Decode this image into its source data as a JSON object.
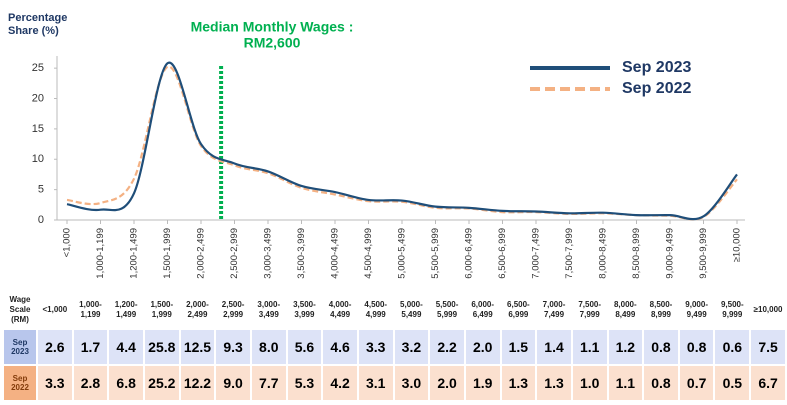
{
  "chart_data": {
    "type": "line",
    "ylabel": [
      "Percentage",
      "Share (%)"
    ],
    "annotation": [
      "Median Monthly Wages :",
      "RM2,600"
    ],
    "categories": [
      "<1,000",
      "1,000-1,199",
      "1,200-1,499",
      "1,500-1,999",
      "2,000-2,499",
      "2,500-2,999",
      "3,000-3,499",
      "3,500-3,999",
      "4,000-4,499",
      "4,500-4,999",
      "5,000-5,499",
      "5,500-5,999",
      "6,000-6,499",
      "6,500-6,999",
      "7,000-7,499",
      "7,500-7,999",
      "8,000-8,499",
      "8,500-8,999",
      "9,000-9,499",
      "9,500-9,999",
      "≥10,000"
    ],
    "series": [
      {
        "name": "Sep 2023",
        "color": "#1f4e79",
        "dashed": false,
        "values": [
          2.6,
          1.7,
          4.4,
          25.8,
          12.5,
          9.3,
          8.0,
          5.6,
          4.6,
          3.3,
          3.2,
          2.2,
          2.0,
          1.5,
          1.4,
          1.1,
          1.2,
          0.8,
          0.8,
          0.6,
          7.5
        ],
        "value_labels": [
          "2.6",
          "1.7",
          "4.4",
          "25.8",
          "12.5",
          "9.3",
          "8.0",
          "5.6",
          "4.6",
          "3.3",
          "3.2",
          "2.2",
          "2.0",
          "1.5",
          "1.4",
          "1.1",
          "1.2",
          "0.8",
          "0.8",
          "0.6",
          "7.5"
        ]
      },
      {
        "name": "Sep 2022",
        "color": "#f4b183",
        "dashed": true,
        "values": [
          3.3,
          2.8,
          6.8,
          25.2,
          12.2,
          9.0,
          7.7,
          5.3,
          4.2,
          3.1,
          3.0,
          2.0,
          1.9,
          1.3,
          1.3,
          1.0,
          1.1,
          0.8,
          0.7,
          0.5,
          6.7
        ],
        "value_labels": [
          "3.3",
          "2.8",
          "6.8",
          "25.2",
          "12.2",
          "9.0",
          "7.7",
          "5.3",
          "4.2",
          "3.1",
          "3.0",
          "2.0",
          "1.9",
          "1.3",
          "1.3",
          "1.0",
          "1.1",
          "0.8",
          "0.7",
          "0.5",
          "6.7"
        ]
      }
    ],
    "ylim": [
      0,
      27
    ],
    "yticks": [
      0,
      5,
      10,
      15,
      20,
      25
    ],
    "legend": "upper right",
    "table_row_header": "Wage Scale (RM)"
  }
}
